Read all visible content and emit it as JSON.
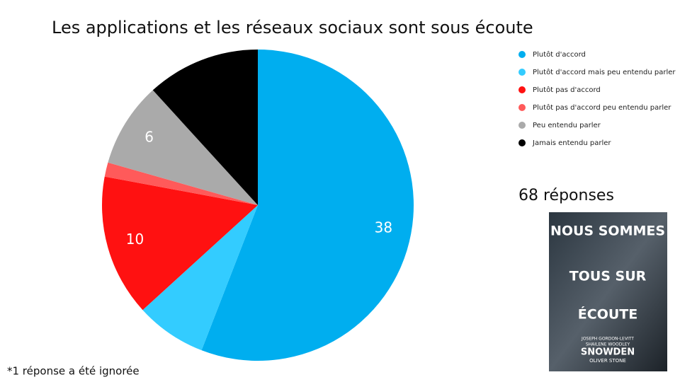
{
  "chart_data": {
    "type": "pie",
    "title": "Les applications et les réseaux sociaux sont sous écoute",
    "categories": [
      "Plutôt d'accord",
      "Plutôt d'accord mais peu entendu parler",
      "Plutôt pas d'accord",
      "Plutôt pas d'accord peu entendu parler",
      "Peu entendu parler",
      "Jamais entendu parler"
    ],
    "values": [
      38,
      5,
      10,
      1,
      6,
      8
    ],
    "value_labels": [
      "38",
      null,
      "10",
      null,
      "6",
      null
    ],
    "colors": [
      "#00aeef",
      "#33ccff",
      "#ff1111",
      "#ff5a5a",
      "#aaaaaa",
      "#000000"
    ],
    "total_label": "68 réponses",
    "footnote": "*1 réponse a été ignorée"
  },
  "poster": {
    "lines": [
      "NOUS SOMMES",
      "TOUS SUR",
      "ÉCOUTE"
    ],
    "cast": [
      "JOSEPH GORDON-LEVITT",
      "SHAILENE WOODLEY"
    ],
    "name": "SNOWDEN",
    "director": "OLIVER STONE"
  }
}
